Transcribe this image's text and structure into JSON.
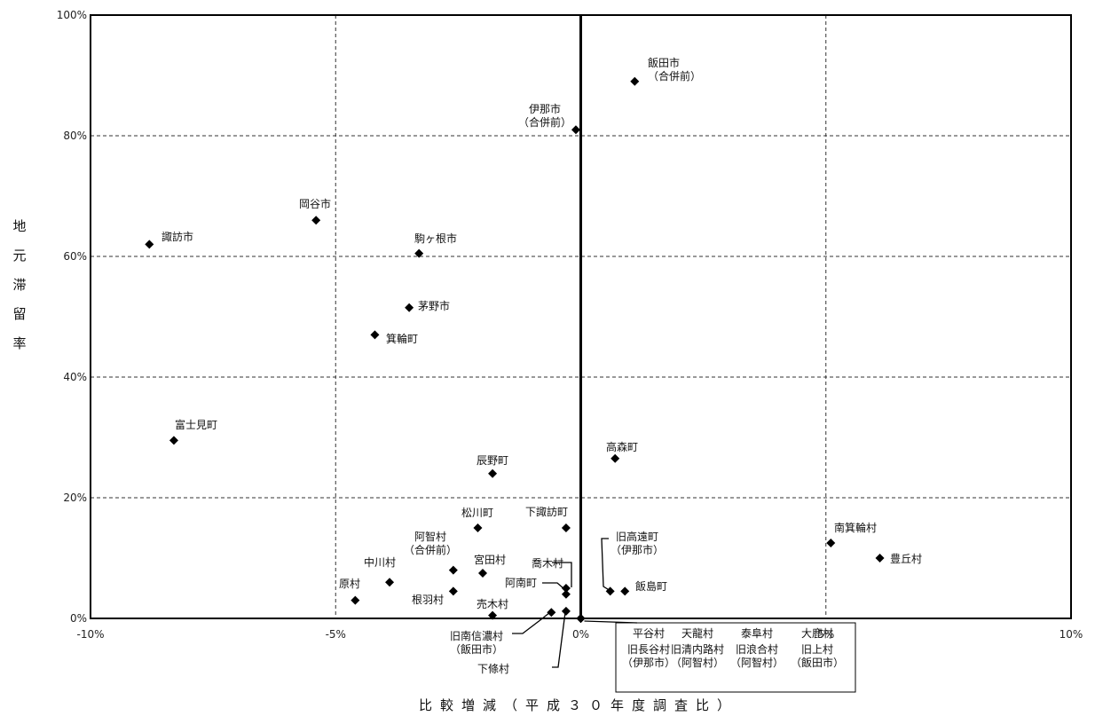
{
  "chart_data": {
    "type": "scatter",
    "title": "",
    "xlabel": "比較増減（平成３０年度調査比）",
    "ylabel": "地元滞留率",
    "xlim": [
      -10,
      10
    ],
    "ylim": [
      0,
      100
    ],
    "x_ticks": [
      "-10%",
      "-5%",
      "0%",
      "5%",
      "10%"
    ],
    "y_ticks": [
      "0%",
      "20%",
      "40%",
      "60%",
      "80%",
      "100%"
    ],
    "grid": true,
    "marker": "diamond",
    "point_color": "#000000",
    "points": [
      {
        "label": "飯田市\n（合併前）",
        "x": 1.1,
        "y": 89
      },
      {
        "label": "伊那市\n（合併前）",
        "x": -0.1,
        "y": 81
      },
      {
        "label": "岡谷市",
        "x": -5.4,
        "y": 66
      },
      {
        "label": "諏訪市",
        "x": -8.8,
        "y": 62
      },
      {
        "label": "駒ヶ根市",
        "x": -3.3,
        "y": 60.5
      },
      {
        "label": "茅野市",
        "x": -3.5,
        "y": 51.5
      },
      {
        "label": "箕輪町",
        "x": -4.2,
        "y": 47
      },
      {
        "label": "富士見町",
        "x": -8.3,
        "y": 29.5
      },
      {
        "label": "辰野町",
        "x": -1.8,
        "y": 24
      },
      {
        "label": "高森町",
        "x": 0.7,
        "y": 26.5
      },
      {
        "label": "松川町",
        "x": -2.1,
        "y": 15
      },
      {
        "label": "下諏訪町",
        "x": -0.3,
        "y": 15
      },
      {
        "label": "南箕輪村",
        "x": 5.1,
        "y": 12.5
      },
      {
        "label": "豊丘村",
        "x": 6.1,
        "y": 10
      },
      {
        "label": "阿智村\n（合併前）",
        "x": -2.6,
        "y": 8
      },
      {
        "label": "宮田村",
        "x": -2.0,
        "y": 7.5
      },
      {
        "label": "中川村",
        "x": -3.9,
        "y": 6
      },
      {
        "label": "喬木村",
        "x": -0.3,
        "y": 5
      },
      {
        "label": "阿南町",
        "x": -0.3,
        "y": 4
      },
      {
        "label": "旧高遠町\n（伊那市）",
        "x": 0.6,
        "y": 4.5
      },
      {
        "label": "飯島町",
        "x": 0.9,
        "y": 4.5
      },
      {
        "label": "根羽村",
        "x": -2.6,
        "y": 4.5
      },
      {
        "label": "原村",
        "x": -4.6,
        "y": 3
      },
      {
        "label": "売木村",
        "x": -1.8,
        "y": 0.5
      },
      {
        "label": "旧南信濃村\n（飯田市）",
        "x": -0.6,
        "y": 1
      },
      {
        "label": "下條村",
        "x": -0.3,
        "y": 1.2
      },
      {
        "label": "平谷村",
        "x": 0,
        "y": 0
      },
      {
        "label": "天龍村",
        "x": 0,
        "y": 0
      },
      {
        "label": "泰阜村",
        "x": 0,
        "y": 0
      },
      {
        "label": "大鹿村",
        "x": 0,
        "y": 0
      },
      {
        "label": "旧長谷村\n（伊那市）",
        "x": 0,
        "y": 0
      },
      {
        "label": "旧清内路村\n（阿智村）",
        "x": 0,
        "y": 0
      },
      {
        "label": "旧浪合村\n（阿智村）",
        "x": 0,
        "y": 0
      },
      {
        "label": "旧上村\n（飯田市）",
        "x": 0,
        "y": 0
      }
    ]
  }
}
